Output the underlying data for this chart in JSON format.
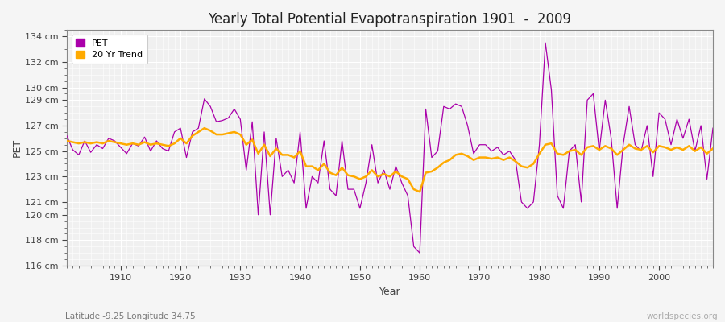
{
  "title": "Yearly Total Potential Evapotranspiration 1901  -  2009",
  "xlabel": "Year",
  "ylabel": "PET",
  "subtitle_left": "Latitude -9.25 Longitude 34.75",
  "subtitle_right": "worldspecies.org",
  "ylim": [
    116,
    134.5
  ],
  "xlim": [
    1901,
    2009
  ],
  "yticks": [
    116,
    118,
    120,
    121,
    123,
    125,
    127,
    129,
    130,
    132,
    134
  ],
  "background_color": "#f5f5f5",
  "plot_bg_color": "#f0f0f0",
  "grid_color": "#ffffff",
  "pet_color": "#aa00aa",
  "trend_color": "#ffaa00",
  "years": [
    1901,
    1902,
    1903,
    1904,
    1905,
    1906,
    1907,
    1908,
    1909,
    1910,
    1911,
    1912,
    1913,
    1914,
    1915,
    1916,
    1917,
    1918,
    1919,
    1920,
    1921,
    1922,
    1923,
    1924,
    1925,
    1926,
    1927,
    1928,
    1929,
    1930,
    1931,
    1932,
    1933,
    1934,
    1935,
    1936,
    1937,
    1938,
    1939,
    1940,
    1941,
    1942,
    1943,
    1944,
    1945,
    1946,
    1947,
    1948,
    1949,
    1950,
    1951,
    1952,
    1953,
    1954,
    1955,
    1956,
    1957,
    1958,
    1959,
    1960,
    1961,
    1962,
    1963,
    1964,
    1965,
    1966,
    1967,
    1968,
    1969,
    1970,
    1971,
    1972,
    1973,
    1974,
    1975,
    1976,
    1977,
    1978,
    1979,
    1980,
    1981,
    1982,
    1983,
    1984,
    1985,
    1986,
    1987,
    1988,
    1989,
    1990,
    1991,
    1992,
    1993,
    1994,
    1995,
    1996,
    1997,
    1998,
    1999,
    2000,
    2001,
    2002,
    2003,
    2004,
    2005,
    2006,
    2007,
    2008,
    2009
  ],
  "pet_values": [
    126.2,
    125.1,
    124.7,
    125.8,
    124.9,
    125.5,
    125.2,
    126.0,
    125.8,
    125.3,
    124.8,
    125.6,
    125.4,
    126.1,
    125.0,
    125.8,
    125.2,
    125.0,
    126.5,
    126.8,
    124.5,
    126.5,
    126.8,
    129.1,
    128.5,
    127.3,
    127.4,
    127.6,
    128.3,
    127.5,
    123.5,
    127.3,
    120.0,
    126.5,
    120.0,
    126.0,
    123.0,
    123.5,
    122.5,
    126.5,
    120.5,
    123.0,
    122.5,
    125.8,
    122.0,
    121.5,
    125.8,
    122.0,
    122.0,
    120.5,
    122.5,
    125.5,
    122.5,
    123.5,
    122.0,
    123.8,
    122.5,
    121.5,
    117.5,
    117.0,
    128.3,
    124.5,
    125.0,
    128.5,
    128.3,
    128.7,
    128.5,
    127.0,
    124.8,
    125.5,
    125.5,
    125.0,
    125.3,
    124.7,
    125.0,
    124.3,
    121.0,
    120.5,
    121.0,
    125.5,
    133.5,
    129.8,
    121.5,
    120.5,
    125.0,
    125.5,
    121.0,
    129.0,
    129.5,
    125.0,
    129.0,
    126.0,
    120.5,
    125.5,
    128.5,
    125.5,
    125.0,
    127.0,
    123.0,
    128.0,
    127.5,
    125.5,
    127.5,
    126.0,
    127.5,
    125.0,
    127.0,
    122.8,
    126.8
  ],
  "trend_values": [
    125.8,
    125.7,
    125.6,
    125.7,
    125.6,
    125.7,
    125.6,
    125.8,
    125.7,
    125.6,
    125.5,
    125.6,
    125.5,
    125.7,
    125.5,
    125.6,
    125.5,
    125.4,
    125.6,
    126.0,
    125.6,
    126.2,
    126.5,
    126.8,
    126.6,
    126.3,
    126.3,
    126.4,
    126.5,
    126.3,
    125.5,
    125.9,
    124.8,
    125.5,
    124.6,
    125.2,
    124.7,
    124.7,
    124.5,
    125.0,
    123.8,
    123.8,
    123.5,
    124.0,
    123.3,
    123.1,
    123.7,
    123.1,
    123.0,
    122.8,
    123.0,
    123.5,
    123.0,
    123.2,
    123.0,
    123.4,
    123.0,
    122.8,
    122.0,
    121.8,
    123.3,
    123.4,
    123.7,
    124.1,
    124.3,
    124.7,
    124.8,
    124.6,
    124.3,
    124.5,
    124.5,
    124.4,
    124.5,
    124.3,
    124.5,
    124.2,
    123.8,
    123.7,
    124.0,
    124.8,
    125.5,
    125.6,
    124.8,
    124.7,
    125.0,
    125.1,
    124.7,
    125.3,
    125.4,
    125.1,
    125.4,
    125.2,
    124.7,
    125.1,
    125.5,
    125.2,
    125.1,
    125.4,
    124.9,
    125.4,
    125.3,
    125.1,
    125.3,
    125.1,
    125.4,
    125.0,
    125.3,
    124.8,
    125.2
  ]
}
